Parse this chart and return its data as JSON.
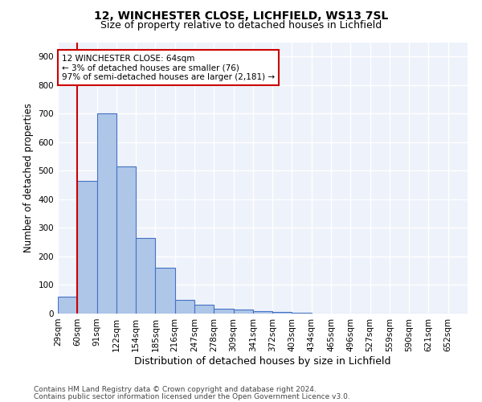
{
  "title1": "12, WINCHESTER CLOSE, LICHFIELD, WS13 7SL",
  "title2": "Size of property relative to detached houses in Lichfield",
  "xlabel": "Distribution of detached houses by size in Lichfield",
  "ylabel": "Number of detached properties",
  "footnote1": "Contains HM Land Registry data © Crown copyright and database right 2024.",
  "footnote2": "Contains public sector information licensed under the Open Government Licence v3.0.",
  "bin_labels": [
    "29sqm",
    "60sqm",
    "91sqm",
    "122sqm",
    "154sqm",
    "185sqm",
    "216sqm",
    "247sqm",
    "278sqm",
    "309sqm",
    "341sqm",
    "372sqm",
    "403sqm",
    "434sqm",
    "465sqm",
    "496sqm",
    "527sqm",
    "559sqm",
    "590sqm",
    "621sqm",
    "652sqm"
  ],
  "bar_values": [
    60,
    465,
    700,
    515,
    265,
    160,
    47,
    30,
    17,
    15,
    8,
    5,
    2,
    1,
    0,
    0,
    0,
    0,
    0,
    0,
    0
  ],
  "bar_color": "#aec6e8",
  "bar_edge_color": "#4472c4",
  "background_color": "#eef2fb",
  "grid_color": "#ffffff",
  "ylim": [
    0,
    950
  ],
  "yticks": [
    0,
    100,
    200,
    300,
    400,
    500,
    600,
    700,
    800,
    900
  ],
  "property_line_color": "#cc0000",
  "annotation_text": "12 WINCHESTER CLOSE: 64sqm\n← 3% of detached houses are smaller (76)\n97% of semi-detached houses are larger (2,181) →",
  "annotation_box_color": "#cc0000",
  "annotation_fontsize": 7.5,
  "title1_fontsize": 10,
  "title2_fontsize": 9,
  "xlabel_fontsize": 9,
  "ylabel_fontsize": 8.5,
  "tick_fontsize": 7.5,
  "footnote_fontsize": 6.5
}
